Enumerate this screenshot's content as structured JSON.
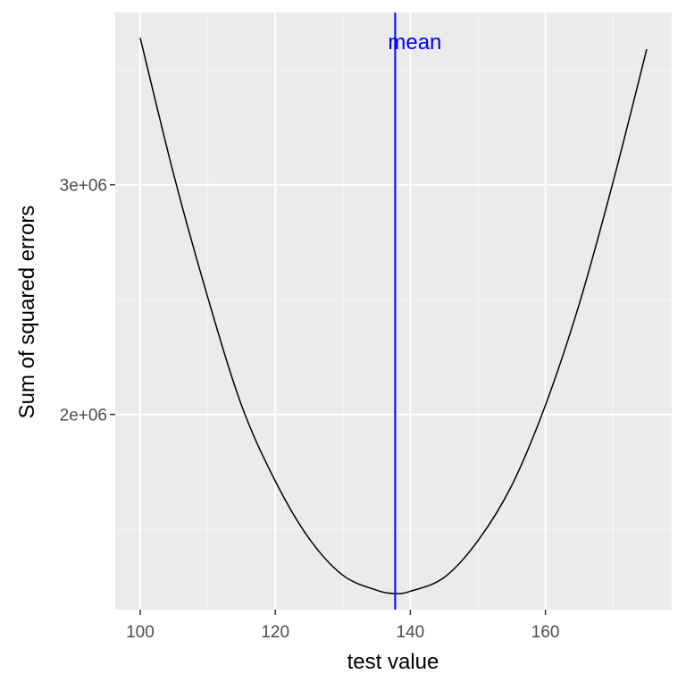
{
  "chart_data": {
    "type": "line",
    "title": "",
    "xlabel": "test value",
    "ylabel": "Sum of squared errors",
    "xlim": [
      96.3,
      178.7
    ],
    "ylim": [
      1150000,
      3750000
    ],
    "x_ticks": [
      100,
      120,
      140,
      160
    ],
    "x_tick_labels": [
      "100",
      "120",
      "140",
      "160"
    ],
    "y_ticks": [
      2000000,
      3000000
    ],
    "y_tick_labels": [
      "2e+06",
      "3e+06"
    ],
    "x_minor_ticks": [
      110,
      130,
      150,
      170
    ],
    "y_minor_ticks": [
      1500000,
      2500000,
      3500000
    ],
    "grid": true,
    "series": [
      {
        "x": [
          100,
          105,
          110,
          115,
          120,
          125,
          130,
          135,
          137.75,
          140,
          145,
          150,
          155,
          160,
          165,
          170,
          175
        ],
        "y": [
          3640000,
          3040000,
          2510000,
          2040000,
          1710000,
          1460000,
          1300000,
          1235000,
          1220000,
          1230000,
          1290000,
          1450000,
          1690000,
          2040000,
          2480000,
          3010000,
          3590000
        ],
        "color": "#000000"
      }
    ],
    "reference_lines": [
      {
        "orientation": "vertical",
        "x": 137.75,
        "label": "mean",
        "color": "#0000ff"
      }
    ],
    "colors": {
      "panel_background": "#ebebeb",
      "grid_major": "#ffffff",
      "grid_minor": "#f5f5f5",
      "axis_text": "#4d4d4d",
      "axis_title": "#000000"
    }
  }
}
